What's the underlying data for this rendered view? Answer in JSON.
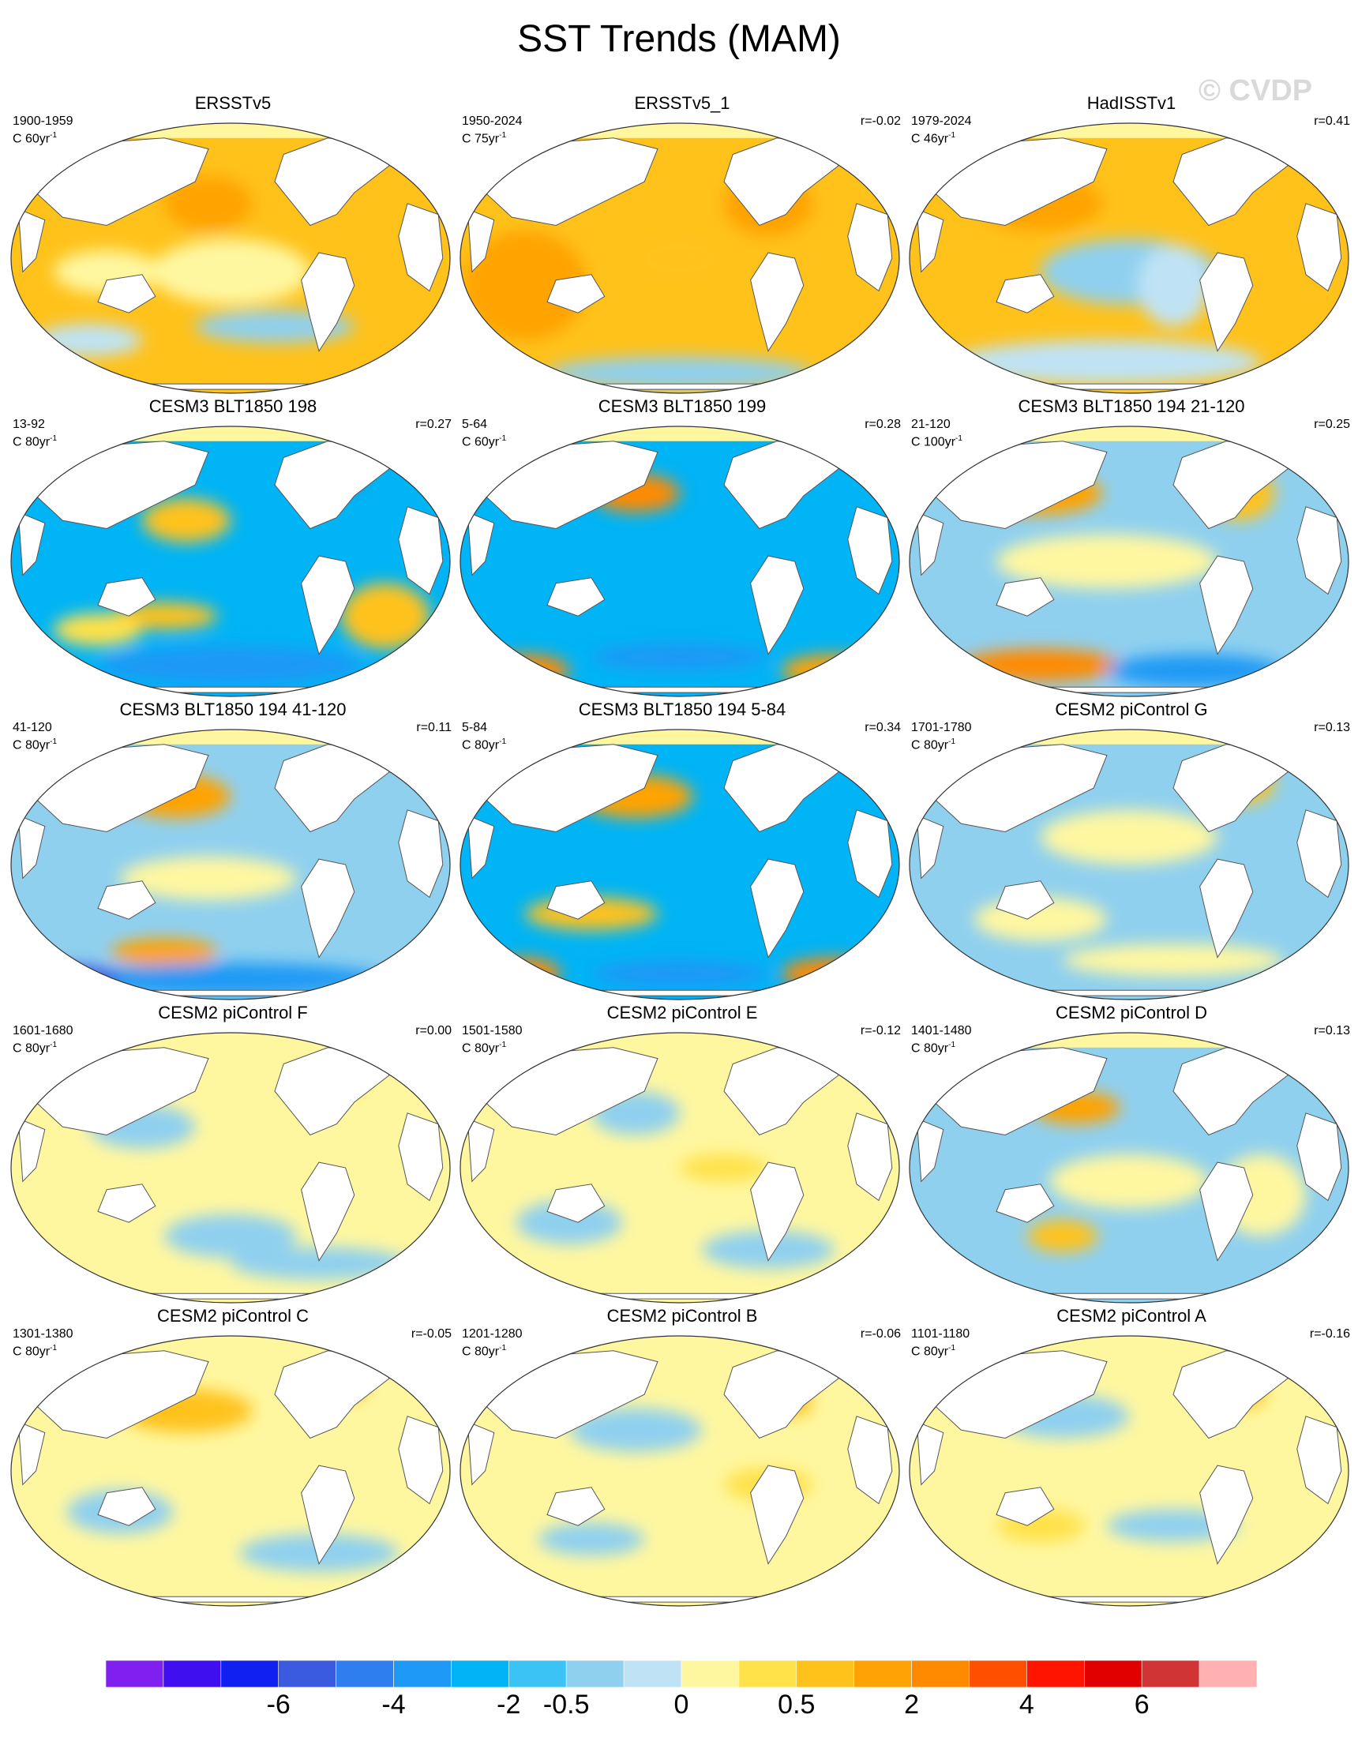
{
  "title": "SST Trends (MAM)",
  "watermark": "© CVDP",
  "panels": [
    {
      "name": "ERSSTv5",
      "years": "1900-1959",
      "units_prefix": "C 60yr",
      "units_sup": "-1",
      "corr": "",
      "pattern": "warm_obs1"
    },
    {
      "name": "ERSSTv5_1",
      "years": "1950-2024",
      "units_prefix": "C 75yr",
      "units_sup": "-1",
      "corr": "r=-0.02",
      "pattern": "warm_obs2"
    },
    {
      "name": "HadISSTv1",
      "years": "1979-2024",
      "units_prefix": "C 46yr",
      "units_sup": "-1",
      "corr": "r=0.41",
      "pattern": "warm_obs3"
    },
    {
      "name": "CESM3 BLT1850 198",
      "years": "13-92",
      "units_prefix": "C 80yr",
      "units_sup": "-1",
      "corr": "r=0.27",
      "pattern": "cool1"
    },
    {
      "name": "CESM3 BLT1850 199",
      "years": "5-64",
      "units_prefix": "C 60yr",
      "units_sup": "-1",
      "corr": "r=0.28",
      "pattern": "cool2"
    },
    {
      "name": "CESM3 BLT1850 194 21-120",
      "years": "21-120",
      "units_prefix": "C 100yr",
      "units_sup": "-1",
      "corr": "r=0.25",
      "pattern": "mixed1"
    },
    {
      "name": "CESM3 BLT1850 194 41-120",
      "years": "41-120",
      "units_prefix": "C 80yr",
      "units_sup": "-1",
      "corr": "r=0.11",
      "pattern": "cool3"
    },
    {
      "name": "CESM3 BLT1850 194 5-84",
      "years": "5-84",
      "units_prefix": "C 80yr",
      "units_sup": "-1",
      "corr": "r=0.34",
      "pattern": "cool4"
    },
    {
      "name": "CESM2 piControl G",
      "years": "1701-1780",
      "units_prefix": "C 80yr",
      "units_sup": "-1",
      "corr": "r=0.13",
      "pattern": "weak1"
    },
    {
      "name": "CESM2 piControl F",
      "years": "1601-1680",
      "units_prefix": "C 80yr",
      "units_sup": "-1",
      "corr": "r=0.00",
      "pattern": "weak2"
    },
    {
      "name": "CESM2 piControl E",
      "years": "1501-1580",
      "units_prefix": "C 80yr",
      "units_sup": "-1",
      "corr": "r=-0.12",
      "pattern": "weak3"
    },
    {
      "name": "CESM2 piControl D",
      "years": "1401-1480",
      "units_prefix": "C 80yr",
      "units_sup": "-1",
      "corr": "r=0.13",
      "pattern": "weak4"
    },
    {
      "name": "CESM2 piControl C",
      "years": "1301-1380",
      "units_prefix": "C 80yr",
      "units_sup": "-1",
      "corr": "r=-0.05",
      "pattern": "weak5"
    },
    {
      "name": "CESM2 piControl B",
      "years": "1201-1280",
      "units_prefix": "C 80yr",
      "units_sup": "-1",
      "corr": "r=-0.06",
      "pattern": "weak6"
    },
    {
      "name": "CESM2 piControl A",
      "years": "1101-1180",
      "units_prefix": "C 80yr",
      "units_sup": "-1",
      "corr": "r=-0.16",
      "pattern": "weak7"
    }
  ],
  "colorbar": {
    "colors": [
      "#7f1ff0",
      "#3f0ff0",
      "#1020f0",
      "#3a5ae0",
      "#2f7ef0",
      "#1e99f5",
      "#00b4f5",
      "#3cc3f5",
      "#8fd0ef",
      "#bfe3f5",
      "#fff7a0",
      "#ffe14a",
      "#ffc21a",
      "#ffa305",
      "#ff8a00",
      "#ff5000",
      "#ff1400",
      "#e00000",
      "#d03434",
      "#ffb0b0"
    ],
    "labels": [
      "-6",
      "-4",
      "-2",
      "-0.5",
      "0",
      "0.5",
      "2",
      "4",
      "6"
    ]
  }
}
